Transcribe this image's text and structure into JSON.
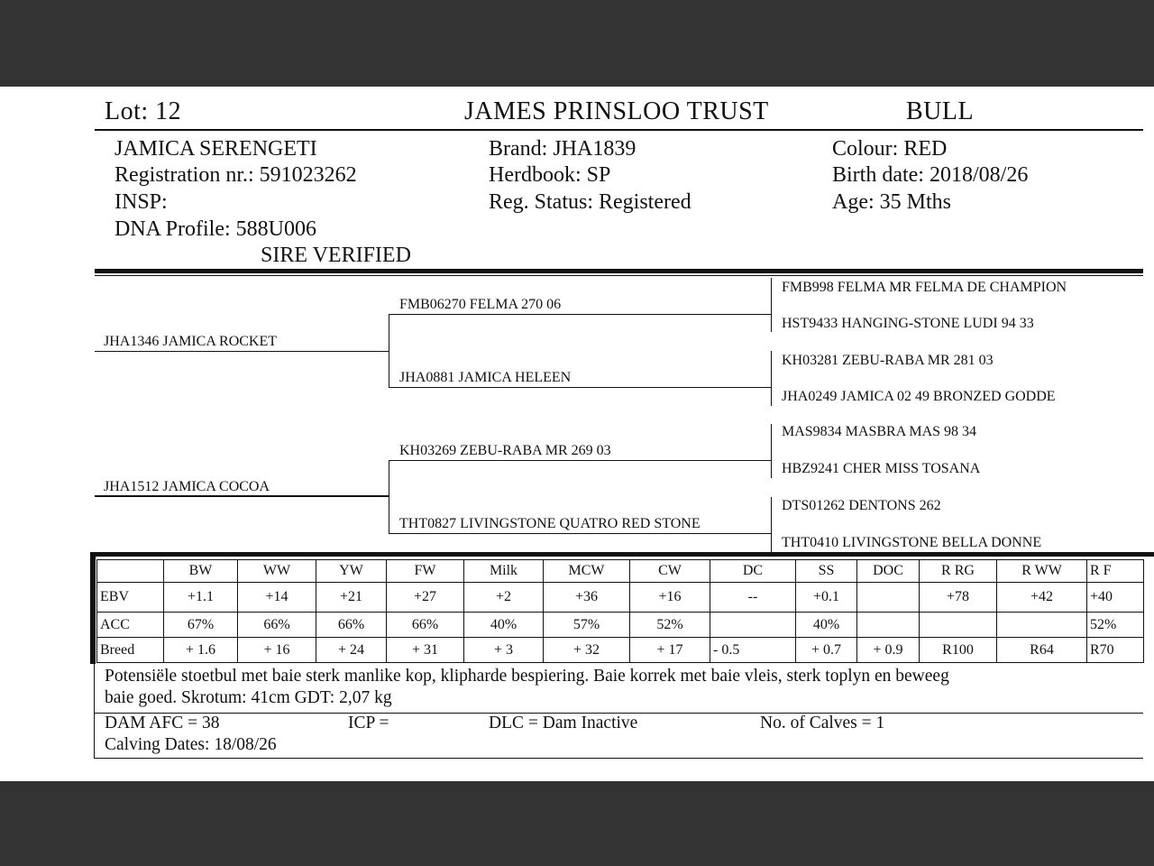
{
  "header": {
    "lot": "Lot:  12",
    "breeder": "JAMES PRINSLOO TRUST",
    "sex": "BULL"
  },
  "animal": {
    "name": "JAMICA SERENGETI",
    "registration": "Registration nr.: 591023262",
    "insp": "INSP:",
    "dna": "DNA Profile:  588U006",
    "sire_verified": "SIRE VERIFIED",
    "brand": "Brand:  JHA1839",
    "herdbook": "Herdbook: SP",
    "reg_status": "Reg. Status: Registered",
    "colour": "Colour:  RED",
    "birth_date": "Birth date:  2018/08/26",
    "age": "Age: 35 Mths"
  },
  "pedigree": {
    "sire": "JHA1346 JAMICA ROCKET",
    "dam": "JHA1512 JAMICA COCOA",
    "gen2": [
      "FMB06270 FELMA 270 06",
      "JHA0881 JAMICA HELEEN",
      "KH03269 ZEBU-RABA MR 269 03",
      "THT0827 LIVINGSTONE QUATRO RED STONE"
    ],
    "gen3": [
      "FMB998 FELMA MR FELMA DE CHAMPION",
      "HST9433 HANGING-STONE LUDI 94 33",
      "KH03281 ZEBU-RABA MR 281 03",
      "JHA0249 JAMICA 02 49 BRONZED GODDE",
      "MAS9834 MASBRA MAS 98 34",
      "HBZ9241 CHER MISS TOSANA",
      "DTS01262 DENTONS 262",
      "THT0410 LIVINGSTONE BELLA DONNE"
    ]
  },
  "ebv_table": {
    "headers": [
      "",
      "BW",
      "WW",
      "YW",
      "FW",
      "Milk",
      "MCW",
      "CW",
      "DC",
      "SS",
      "DOC",
      "R RG",
      "R WW",
      "R F"
    ],
    "rows": [
      [
        "EBV",
        "+1.1",
        "+14",
        "+21",
        "+27",
        "+2",
        "+36",
        "+16",
        "--",
        "+0.1",
        "",
        "+78",
        "+42",
        "+40"
      ],
      [
        "ACC",
        "67%",
        "66%",
        "66%",
        "66%",
        "40%",
        "57%",
        "52%",
        "",
        "40%",
        "",
        "",
        "",
        "52%"
      ],
      [
        "Breed",
        "+ 1.6",
        "+ 16",
        "+ 24",
        "+ 31",
        "+ 3",
        "+ 32",
        "+ 17",
        "- 0.5",
        "+ 0.7",
        "+ 0.9",
        "R100",
        "R64",
        "R70"
      ]
    ]
  },
  "comments": [
    "Potensiële stoetbul met baie sterk manlike kop, klipharde bespiering. Baie korrek met baie vleis, sterk toplyn en beweeg",
    "baie goed. Skrotum: 41cm GDT: 2,07 kg"
  ],
  "dam_info": {
    "afc": "DAM AFC = 38",
    "icp": "ICP =",
    "dlc": "DLC = Dam Inactive",
    "calves": "No. of Calves = 1",
    "calving_dates": "Calving Dates: 18/08/26"
  }
}
